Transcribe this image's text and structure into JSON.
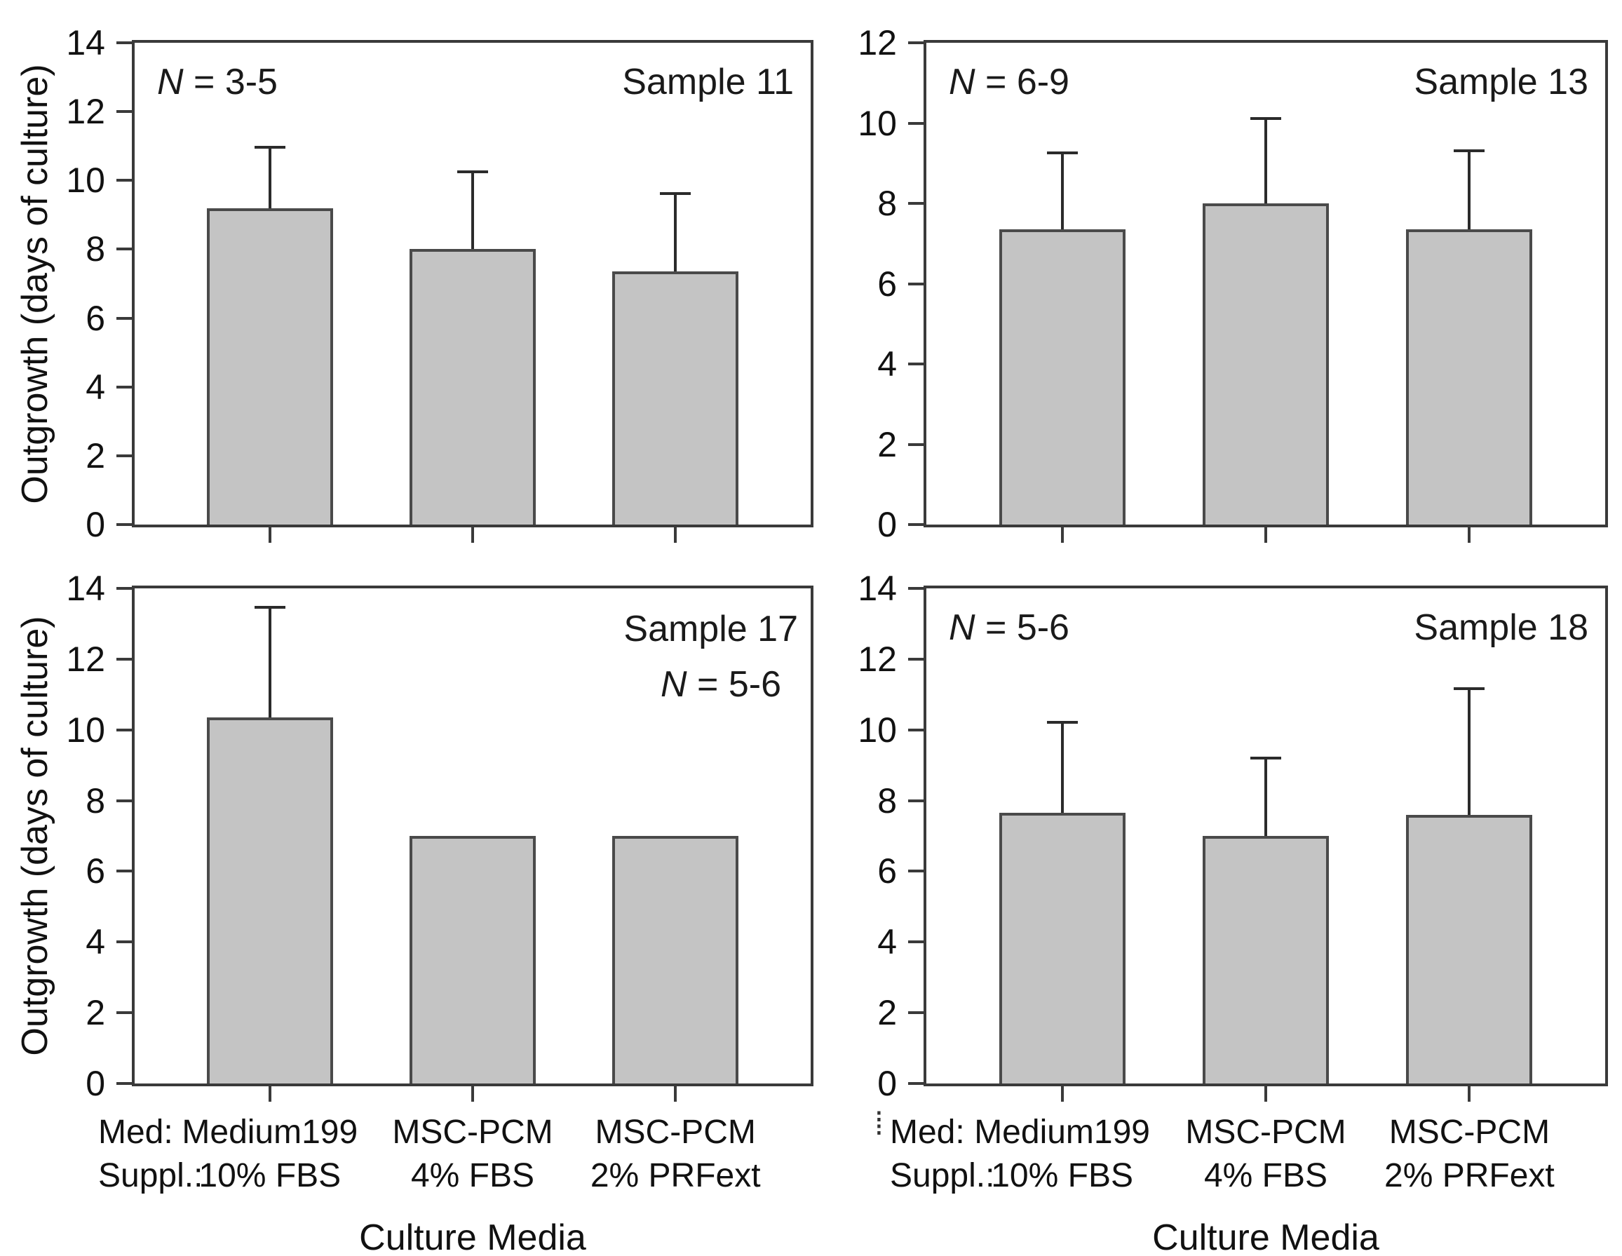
{
  "figure": {
    "bar_fill": "#c4c4c4",
    "bar_border": "#4a4a4a",
    "axis_color": "#3a3a3a",
    "error_color": "#2b2b2b",
    "artifact_dots": "⁞"
  },
  "yaxis": {
    "label": "Outgrowth (days of culture)"
  },
  "xaxis_labels": {
    "row1": {
      "prefix": "Med:",
      "items": [
        "Medium199",
        "MSC-PCM",
        "MSC-PCM"
      ]
    },
    "row2": {
      "prefix": "Suppl.:",
      "items": [
        "10% FBS",
        "4% FBS",
        "2% PRFext"
      ]
    },
    "title": "Culture Media"
  },
  "chart_data": [
    {
      "type": "bar",
      "sample_label": "Sample 11",
      "n_italic": "N",
      "n_rest": " = 3-5",
      "n_label": "N = 3-5",
      "ylabel": "Outgrowth (days of culture)",
      "ylim": [
        0,
        14
      ],
      "ytick_step": 2,
      "categories": [
        "Medium199 + 10% FBS",
        "MSC-PCM + 4% FBS",
        "MSC-PCM + 2% PRFext"
      ],
      "values": [
        9.2,
        8.0,
        7.35
      ],
      "errors_plus": [
        1.8,
        2.3,
        2.3
      ]
    },
    {
      "type": "bar",
      "sample_label": "Sample 13",
      "n_italic": "N",
      "n_rest": " = 6-9",
      "n_label": "N = 6-9",
      "ylim": [
        0,
        12
      ],
      "ytick_step": 2,
      "categories": [
        "Medium199 + 10% FBS",
        "MSC-PCM + 4% FBS",
        "MSC-PCM + 2% PRFext"
      ],
      "values": [
        7.35,
        8.0,
        7.35
      ],
      "errors_plus": [
        1.95,
        2.15,
        2.0
      ]
    },
    {
      "type": "bar",
      "sample_label": "Sample 17",
      "n_italic": "N",
      "n_rest": " = 5-6",
      "n_label": "N = 5-6",
      "ylabel": "Outgrowth (days of culture)",
      "xlabel": "Culture Media",
      "ylim": [
        0,
        14
      ],
      "ytick_step": 2,
      "categories": [
        "Medium199 + 10% FBS",
        "MSC-PCM + 4% FBS",
        "MSC-PCM + 2% PRFext"
      ],
      "values": [
        10.35,
        7.0,
        7.0
      ],
      "errors_plus": [
        3.15,
        0,
        0
      ]
    },
    {
      "type": "bar",
      "sample_label": "Sample 18",
      "n_italic": "N",
      "n_rest": " = 5-6",
      "n_label": "N = 5-6",
      "xlabel": "Culture Media",
      "ylim": [
        0,
        14
      ],
      "ytick_step": 2,
      "categories": [
        "Medium199 + 10% FBS",
        "MSC-PCM + 4% FBS",
        "MSC-PCM + 2% PRFext"
      ],
      "values": [
        7.65,
        7.0,
        7.6
      ],
      "errors_plus": [
        2.6,
        2.25,
        3.6
      ]
    }
  ]
}
